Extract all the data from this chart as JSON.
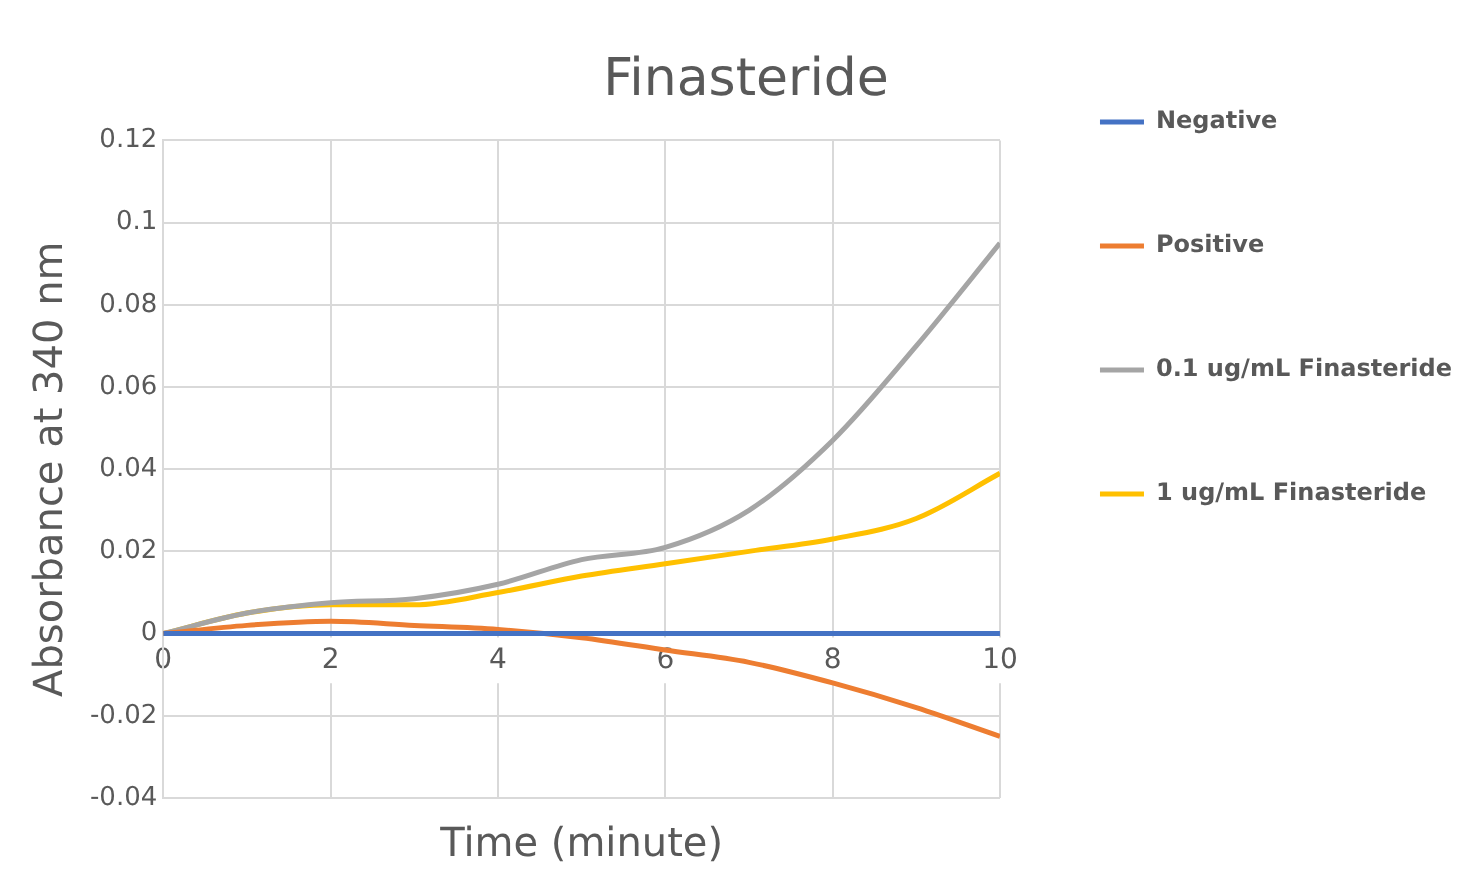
{
  "chart_data": {
    "type": "line",
    "title": "Finasteride",
    "xlabel": "Time (minute)",
    "ylabel": "Absorbance at 340 nm",
    "x": [
      0,
      1,
      2,
      3,
      4,
      5,
      6,
      7,
      8,
      9,
      10
    ],
    "xlim": [
      0,
      10
    ],
    "xticks": [
      0,
      2,
      4,
      6,
      8,
      10
    ],
    "ylim": [
      -0.04,
      0.12
    ],
    "yticks": [
      -0.04,
      -0.02,
      0,
      0.02,
      0.04,
      0.06,
      0.08,
      0.1,
      0.12
    ],
    "grid": true,
    "legend": "right",
    "marker": "none",
    "line_style": "solid",
    "series": [
      {
        "name": "Negative",
        "color": "#4472c4",
        "values": [
          0,
          0,
          0,
          0,
          0,
          0,
          0,
          0,
          0,
          0,
          0
        ]
      },
      {
        "name": "Positive",
        "color": "#ed7d31",
        "values": [
          0,
          0.002,
          0.003,
          0.002,
          0.001,
          -0.001,
          -0.004,
          -0.007,
          -0.012,
          -0.018,
          -0.025
        ]
      },
      {
        "name": "0.1 ug/mL Finasteride",
        "color": "#a5a5a5",
        "values": [
          0,
          0.005,
          0.0075,
          0.0085,
          0.012,
          0.018,
          0.021,
          0.03,
          0.047,
          0.07,
          0.095
        ]
      },
      {
        "name": "1 ug/mL Finasteride",
        "color": "#ffc000",
        "values": [
          0,
          0.005,
          0.007,
          0.007,
          0.01,
          0.014,
          0.017,
          0.02,
          0.023,
          0.028,
          0.039
        ]
      }
    ]
  }
}
